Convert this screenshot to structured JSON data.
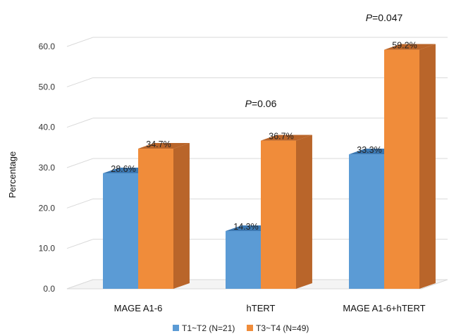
{
  "chart_data": {
    "type": "bar",
    "style": "3d-clustered-column",
    "categories": [
      "MAGE A1-6",
      "hTERT",
      "MAGE A1-6+hTERT"
    ],
    "series": [
      {
        "name": "T1~T2 (N=21)",
        "color": "#5B9BD5",
        "values": [
          28.6,
          14.3,
          33.3
        ],
        "labels": [
          "28.6%",
          "14.3%",
          "33.3%"
        ]
      },
      {
        "name": "T3~T4 (N=49)",
        "color": "#F08C3A",
        "values": [
          34.7,
          36.7,
          59.2
        ],
        "labels": [
          "34.7%",
          "36.7%",
          "59.2%"
        ]
      }
    ],
    "ylabel": "Percentage",
    "ylim": [
      0,
      60
    ],
    "yticks": [
      "0.0",
      "10.0",
      "20.0",
      "30.0",
      "40.0",
      "50.0",
      "60.0"
    ],
    "grid": true,
    "legend_position": "bottom",
    "annotations": [
      {
        "category": "hTERT",
        "italic": "P",
        "rest": "=0.06"
      },
      {
        "category": "MAGE A1-6+hTERT",
        "italic": "P",
        "rest": "=0.047"
      }
    ]
  }
}
